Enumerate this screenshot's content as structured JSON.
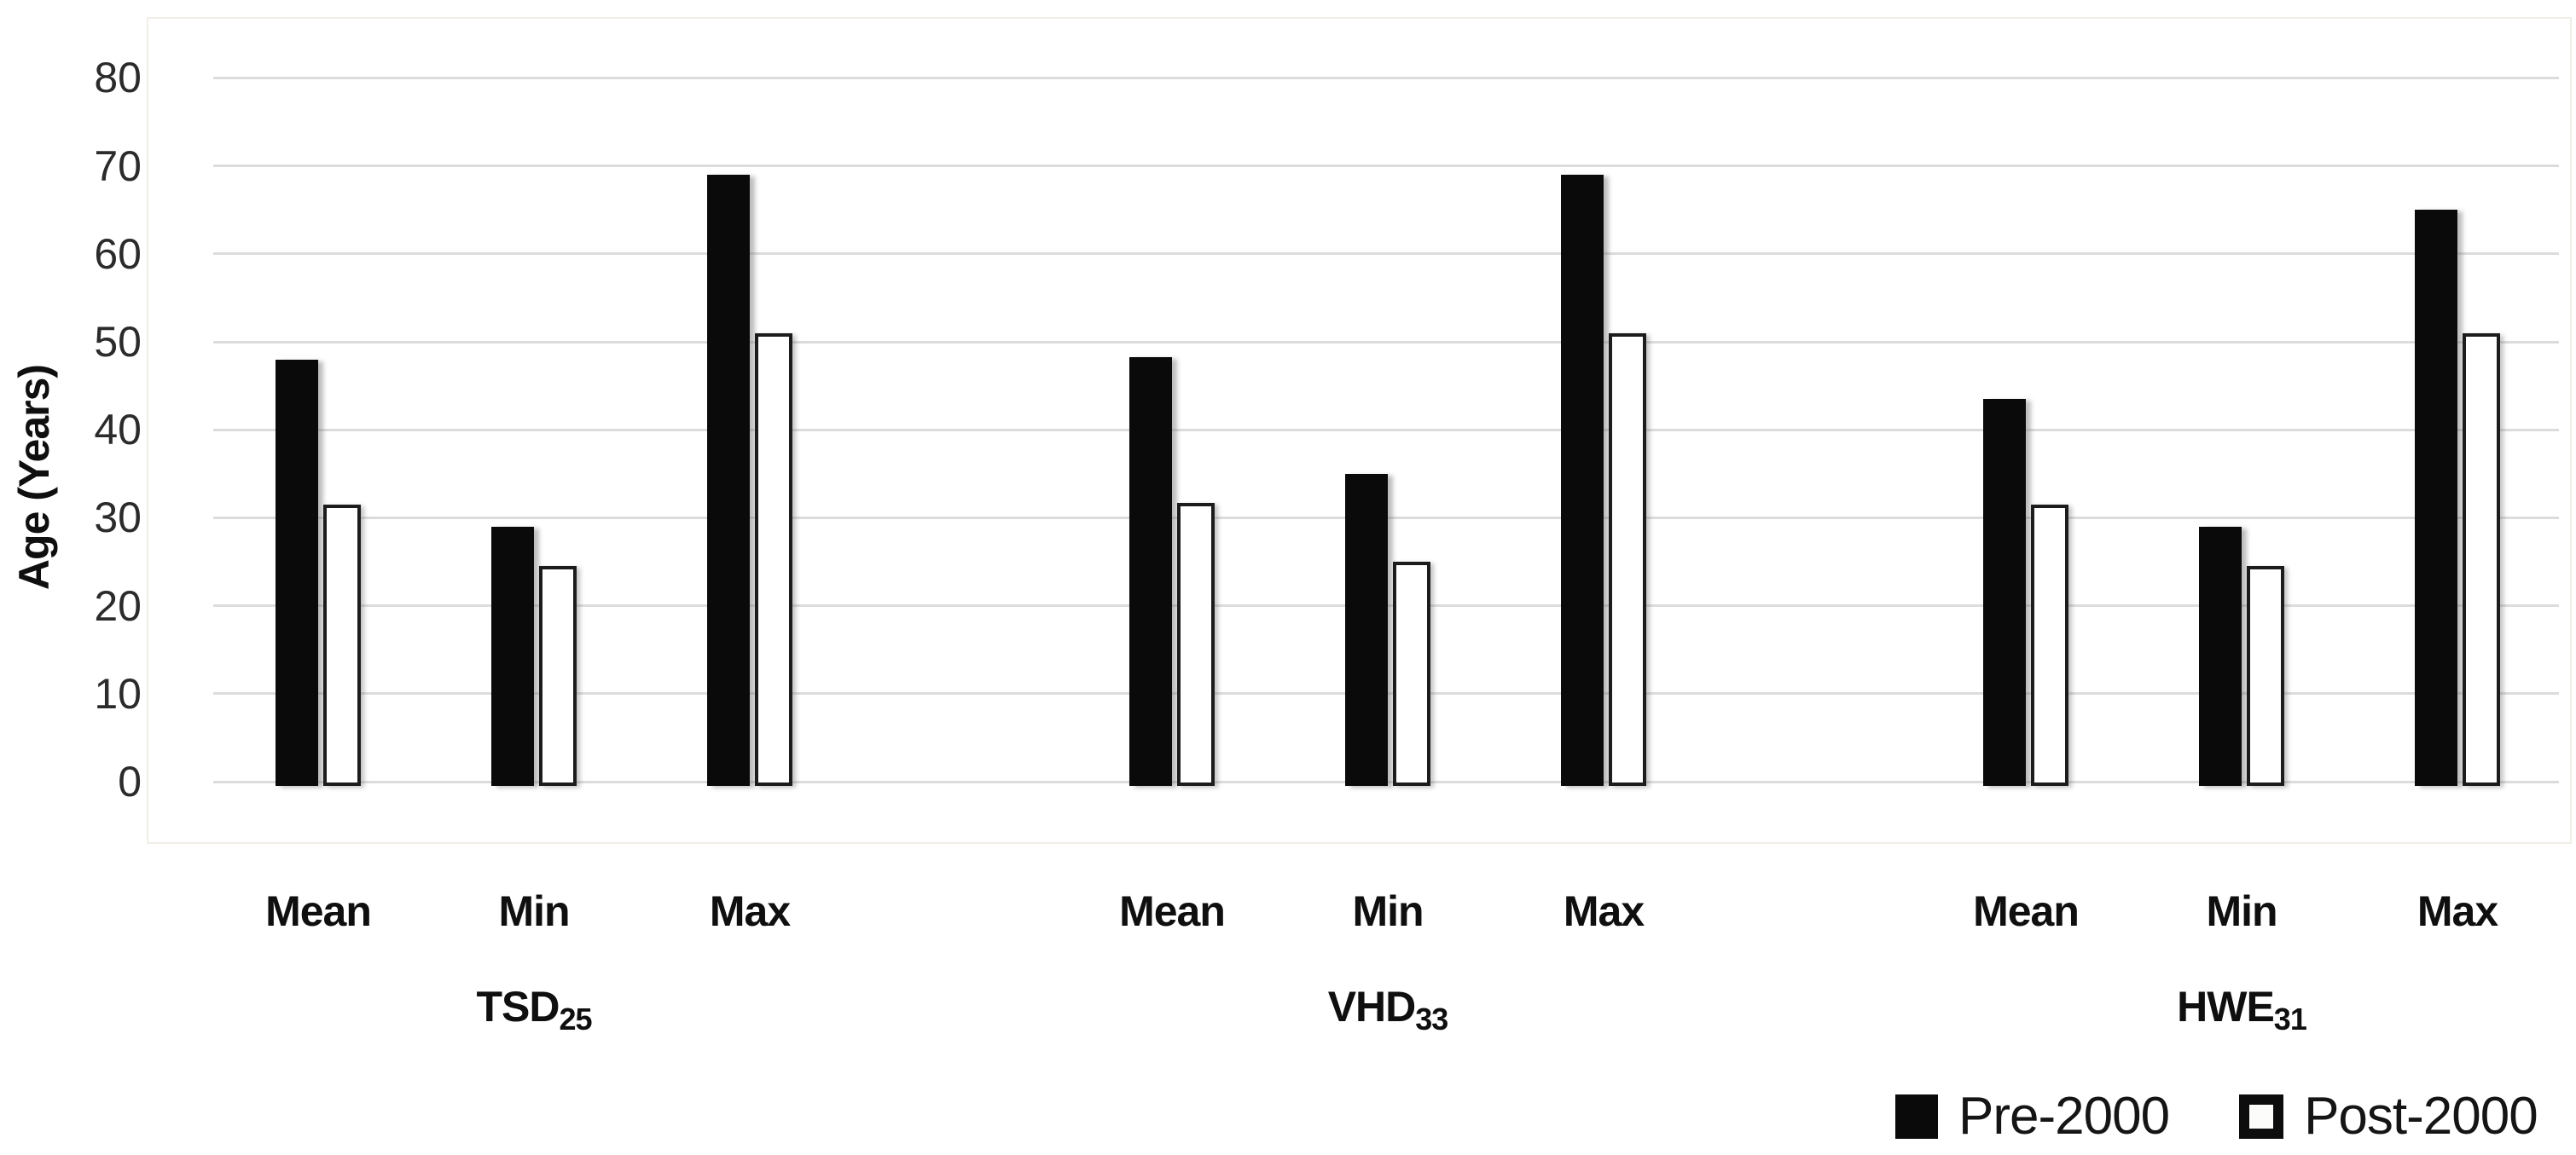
{
  "chart_data": {
    "type": "bar",
    "title": "",
    "ylabel": "Age (Years)",
    "xlabel": "",
    "ylim": [
      0,
      80
    ],
    "yticks": [
      0,
      10,
      20,
      30,
      40,
      50,
      60,
      70,
      80
    ],
    "grid": true,
    "legend_position": "bottom-right",
    "categories_per_group": [
      "Mean",
      "Min",
      "Max"
    ],
    "group_labels": [
      {
        "main": "TSD",
        "sub": "25"
      },
      {
        "main": "VHD",
        "sub": "33"
      },
      {
        "main": "HWE",
        "sub": "31"
      }
    ],
    "series": [
      {
        "name": "Pre-2000",
        "swatch": "filled",
        "values": [
          [
            48,
            29,
            69
          ],
          [
            48.3,
            35,
            69
          ],
          [
            43.5,
            29,
            65
          ]
        ]
      },
      {
        "name": "Post-2000",
        "swatch": "outline",
        "values": [
          [
            31.5,
            24.5,
            51
          ],
          [
            31.7,
            25,
            51
          ],
          [
            31.5,
            24.5,
            51
          ]
        ]
      }
    ],
    "colors": {
      "pre_2000_fill": "#0a0a0a",
      "post_2000_fill": "#ffffff",
      "post_2000_border": "#1c1c1c",
      "gridline": "#dcdcdc",
      "plot_border": "#f1eee8",
      "text": "#0f0f0f"
    }
  }
}
